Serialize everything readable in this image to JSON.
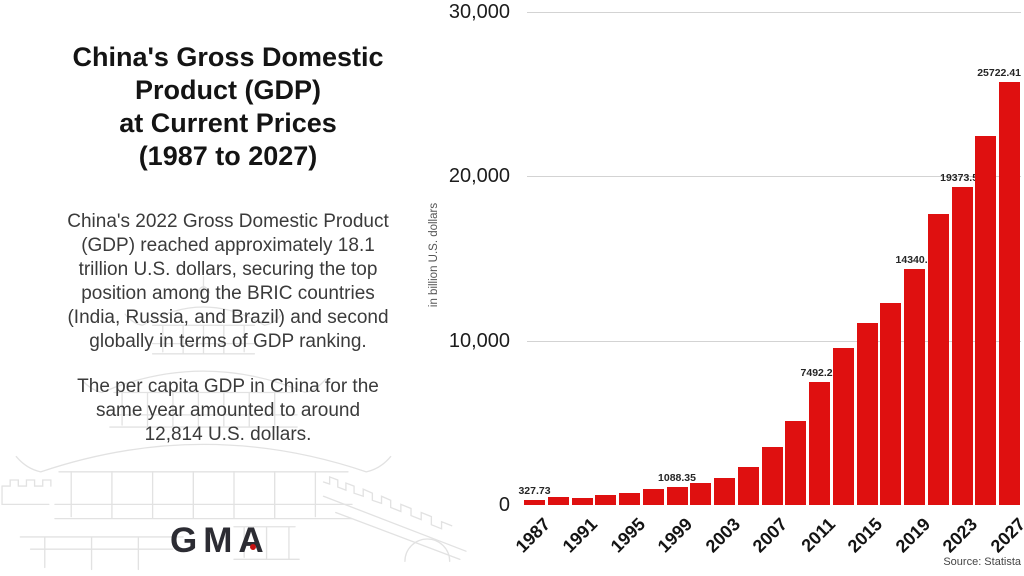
{
  "panel": {
    "title_lines": [
      "China's Gross Domestic",
      "Product (GDP)",
      "at Current Prices",
      "(1987 to 2027)"
    ],
    "paragraph1_lines": [
      "China's 2022 Gross Domestic Product",
      "(GDP) reached approximately 18.1",
      "trillion U.S. dollars, securing the top",
      "position among the BRIC countries",
      "(India, Russia, and Brazil) and second",
      "globally in terms of GDP ranking."
    ],
    "paragraph2_lines": [
      "The per capita GDP in China for the",
      "same year amounted to around",
      "12,814 U.S. dollars."
    ],
    "logo_text": "GMA",
    "logo_color": "#2c2c33",
    "logo_dot_color": "#c41212"
  },
  "chart_data": {
    "type": "bar",
    "title": "China's Gross Domestic Product (GDP) at Current Prices (1987 to 2027)",
    "xlabel": "",
    "ylabel": "in billion U.S. dollars",
    "ylim": [
      0,
      30000
    ],
    "grid": "horizontal",
    "legend": "none",
    "bar_color": "#df1010",
    "categories": [
      1987,
      1989,
      1991,
      1993,
      1995,
      1997,
      1999,
      2001,
      2003,
      2005,
      2007,
      2009,
      2011,
      2013,
      2015,
      2017,
      2019,
      2021,
      2023,
      2025,
      2027
    ],
    "values": [
      327.73,
      459.78,
      409.17,
      613.22,
      734.48,
      961.6,
      1088.35,
      1333.65,
      1656.96,
      2286.69,
      3550.34,
      5101.7,
      7492.21,
      9570.41,
      11061.55,
      12310.41,
      14340.6,
      17734.06,
      19373.59,
      22470,
      25722.41
    ],
    "data_labels": {
      "1987": "327.73",
      "1999": "1088.35",
      "2011": "7492.21",
      "2019": "14340.6",
      "2023": "19373.59",
      "2027": "25722.41"
    },
    "xtick_labels": [
      "1987",
      "1991",
      "1995",
      "1999",
      "2003",
      "2007",
      "2011",
      "2015",
      "2019",
      "2023",
      "2027"
    ],
    "yticks": [
      {
        "value": 30000,
        "label": "30,000"
      },
      {
        "value": 20000,
        "label": "20,000"
      },
      {
        "value": 10000,
        "label": "10,000"
      },
      {
        "value": 0,
        "label": "0"
      }
    ],
    "source": "Source: Statista"
  }
}
